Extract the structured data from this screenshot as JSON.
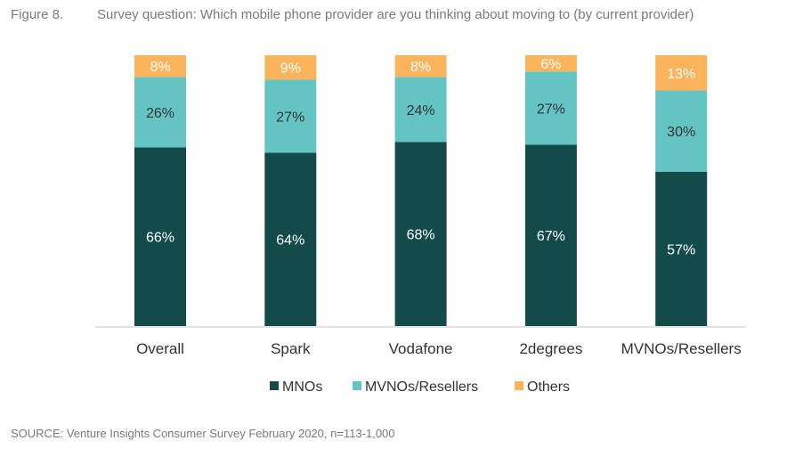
{
  "figure": {
    "number": "Figure 8.",
    "title": "Survey question: Which mobile phone provider are you thinking about moving to (by current provider)"
  },
  "source": "SOURCE: Venture Insights Consumer Survey February 2020, n=113-1,000",
  "chart_data": {
    "type": "bar",
    "stacked": true,
    "categories": [
      "Overall",
      "Spark",
      "Vodafone",
      "2degrees",
      "MVNOs/Resellers"
    ],
    "series": [
      {
        "name": "MNOs",
        "color": "#134a4a",
        "values": [
          66,
          64,
          68,
          67,
          57
        ],
        "labels": [
          "66%",
          "64%",
          "68%",
          "67%",
          "57%"
        ]
      },
      {
        "name": "MVNOs/Resellers",
        "color": "#63c4c3",
        "values": [
          26,
          27,
          24,
          27,
          30
        ],
        "labels": [
          "26%",
          "27%",
          "24%",
          "27%",
          "30%"
        ]
      },
      {
        "name": "Others",
        "color": "#fbb45c",
        "values": [
          8,
          9,
          8,
          6,
          13
        ],
        "labels": [
          "8%",
          "9%",
          "8%",
          "6%",
          "13%"
        ]
      }
    ],
    "ylim": [
      0,
      100
    ],
    "grid": false,
    "legend": "bottom",
    "xlabel": "",
    "ylabel": ""
  }
}
